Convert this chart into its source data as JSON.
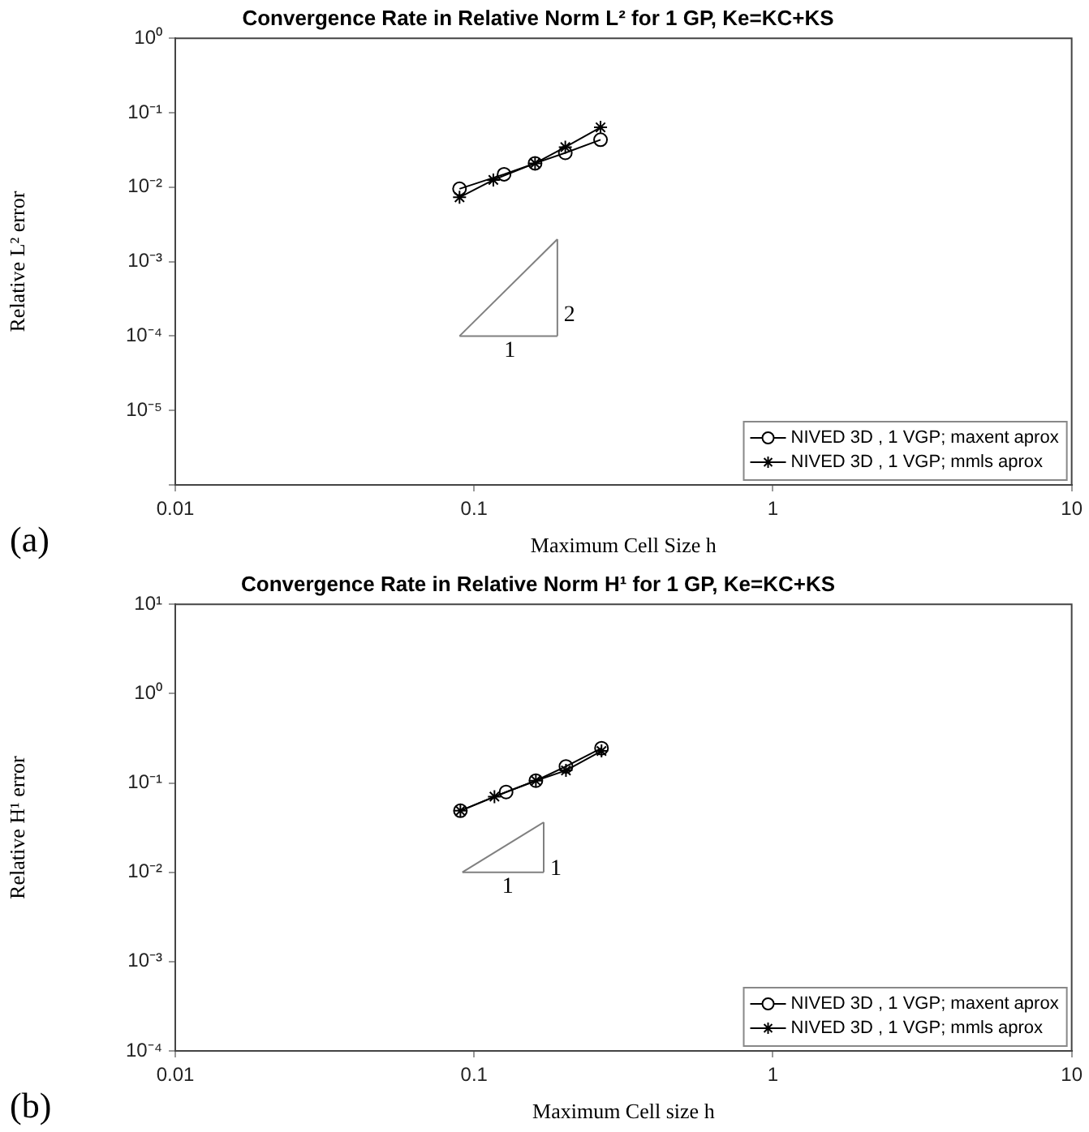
{
  "chart_data": [
    {
      "type": "line",
      "title": "Convergence Rate in Relative Norm L² for 1 GP, Ke=KC+KS",
      "xlabel": "Maximum Cell Size h",
      "ylabel": "Relative L² error",
      "log": "xy",
      "grid": false,
      "legend": "bottom right",
      "xlim": [
        0.01,
        10
      ],
      "xticks": [
        0.01,
        0.1,
        1,
        10
      ],
      "ylim": [
        1e-06,
        1
      ],
      "yticks": [
        {
          "value": 1e-06,
          "label": null
        },
        {
          "value": 1e-05,
          "label": "10⁻⁵"
        },
        {
          "value": 0.0001,
          "label": "10⁻⁴"
        },
        {
          "value": 0.001,
          "label": "10⁻³"
        },
        {
          "value": 0.01,
          "label": "10⁻²"
        },
        {
          "value": 0.1,
          "label": "10⁻¹"
        },
        {
          "value": 1,
          "label": "10⁰"
        }
      ],
      "series": [
        {
          "name": "NIVED 3D , 1 VGP; maxent aprox",
          "color": "#000000",
          "marker": "circle",
          "x": [
            0.0894,
            0.126,
            0.16,
            0.202,
            0.265
          ],
          "values": [
            0.0095,
            0.0149,
            0.0209,
            0.0289,
            0.0433
          ]
        },
        {
          "name": "NIVED 3D , 1 VGP; mmls aprox",
          "color": "#000000",
          "marker": "cross",
          "x": [
            0.0894,
            0.116,
            0.16,
            0.202,
            0.265
          ],
          "values": [
            0.0073,
            0.0125,
            0.0209,
            0.0345,
            0.0636
          ]
        },
        {
          "color": "#808080",
          "marker": "none",
          "x": [
            0.0894,
            0.19
          ],
          "values": [
            0.0001,
            0.0001
          ]
        },
        {
          "color": "#808080",
          "marker": "none",
          "x": [
            0.19,
            0.19
          ],
          "values": [
            0.0001,
            0.002
          ]
        },
        {
          "color": "#808080",
          "marker": "none",
          "x": [
            0.0894,
            0.19
          ],
          "values": [
            0.0001,
            0.002
          ]
        }
      ],
      "annotations": [
        "(a)",
        {
          "text": "1",
          "x": 0.12,
          "y": 0.0001
        },
        {
          "text": "2",
          "x": 0.19,
          "y": 0.0003
        }
      ]
    },
    {
      "type": "line",
      "title": "Convergence Rate in Relative Norm H¹ for 1 GP, Ke=KC+KS",
      "xlabel": "Maximum Cell size h",
      "ylabel": "Relative H¹ error",
      "log": "xy",
      "grid": false,
      "legend": "bottom right",
      "xlim": [
        0.01,
        10
      ],
      "xticks": [
        0.01,
        0.1,
        1,
        10
      ],
      "ylim": [
        0.0001,
        10
      ],
      "yticks": [
        {
          "value": 0.0001,
          "label": "10⁻⁴"
        },
        {
          "value": 0.001,
          "label": "10⁻³"
        },
        {
          "value": 0.01,
          "label": "10⁻²"
        },
        {
          "value": 0.1,
          "label": "10⁻¹"
        },
        {
          "value": 1,
          "label": "10⁰"
        },
        {
          "value": 10,
          "label": "10¹"
        }
      ],
      "series": [
        {
          "name": "NIVED 3D , 1 VGP; maxent aprox",
          "color": "#000000",
          "marker": "circle",
          "x": [
            0.09,
            0.128,
            0.161,
            0.203,
            0.267
          ],
          "values": [
            0.0488,
            0.0791,
            0.106,
            0.153,
            0.245
          ]
        },
        {
          "name": "NIVED 3D , 1 VGP; mmls aprox",
          "color": "#000000",
          "marker": "cross",
          "x": [
            0.09,
            0.117,
            0.161,
            0.203,
            0.267
          ],
          "values": [
            0.0488,
            0.0703,
            0.106,
            0.138,
            0.228
          ]
        },
        {
          "color": "#808080",
          "marker": "none",
          "x": [
            0.0914,
            0.171
          ],
          "values": [
            0.01,
            0.01
          ]
        },
        {
          "color": "#808080",
          "marker": "none",
          "x": [
            0.171,
            0.171
          ],
          "values": [
            0.01,
            0.0363
          ]
        },
        {
          "color": "#808080",
          "marker": "none",
          "x": [
            0.0914,
            0.171
          ],
          "values": [
            0.01,
            0.0363
          ]
        }
      ],
      "annotations": [
        "(b)",
        {
          "text": "1",
          "x": 0.118,
          "y": 0.01
        },
        {
          "text": "1",
          "x": 0.171,
          "y": 0.016
        }
      ]
    }
  ]
}
